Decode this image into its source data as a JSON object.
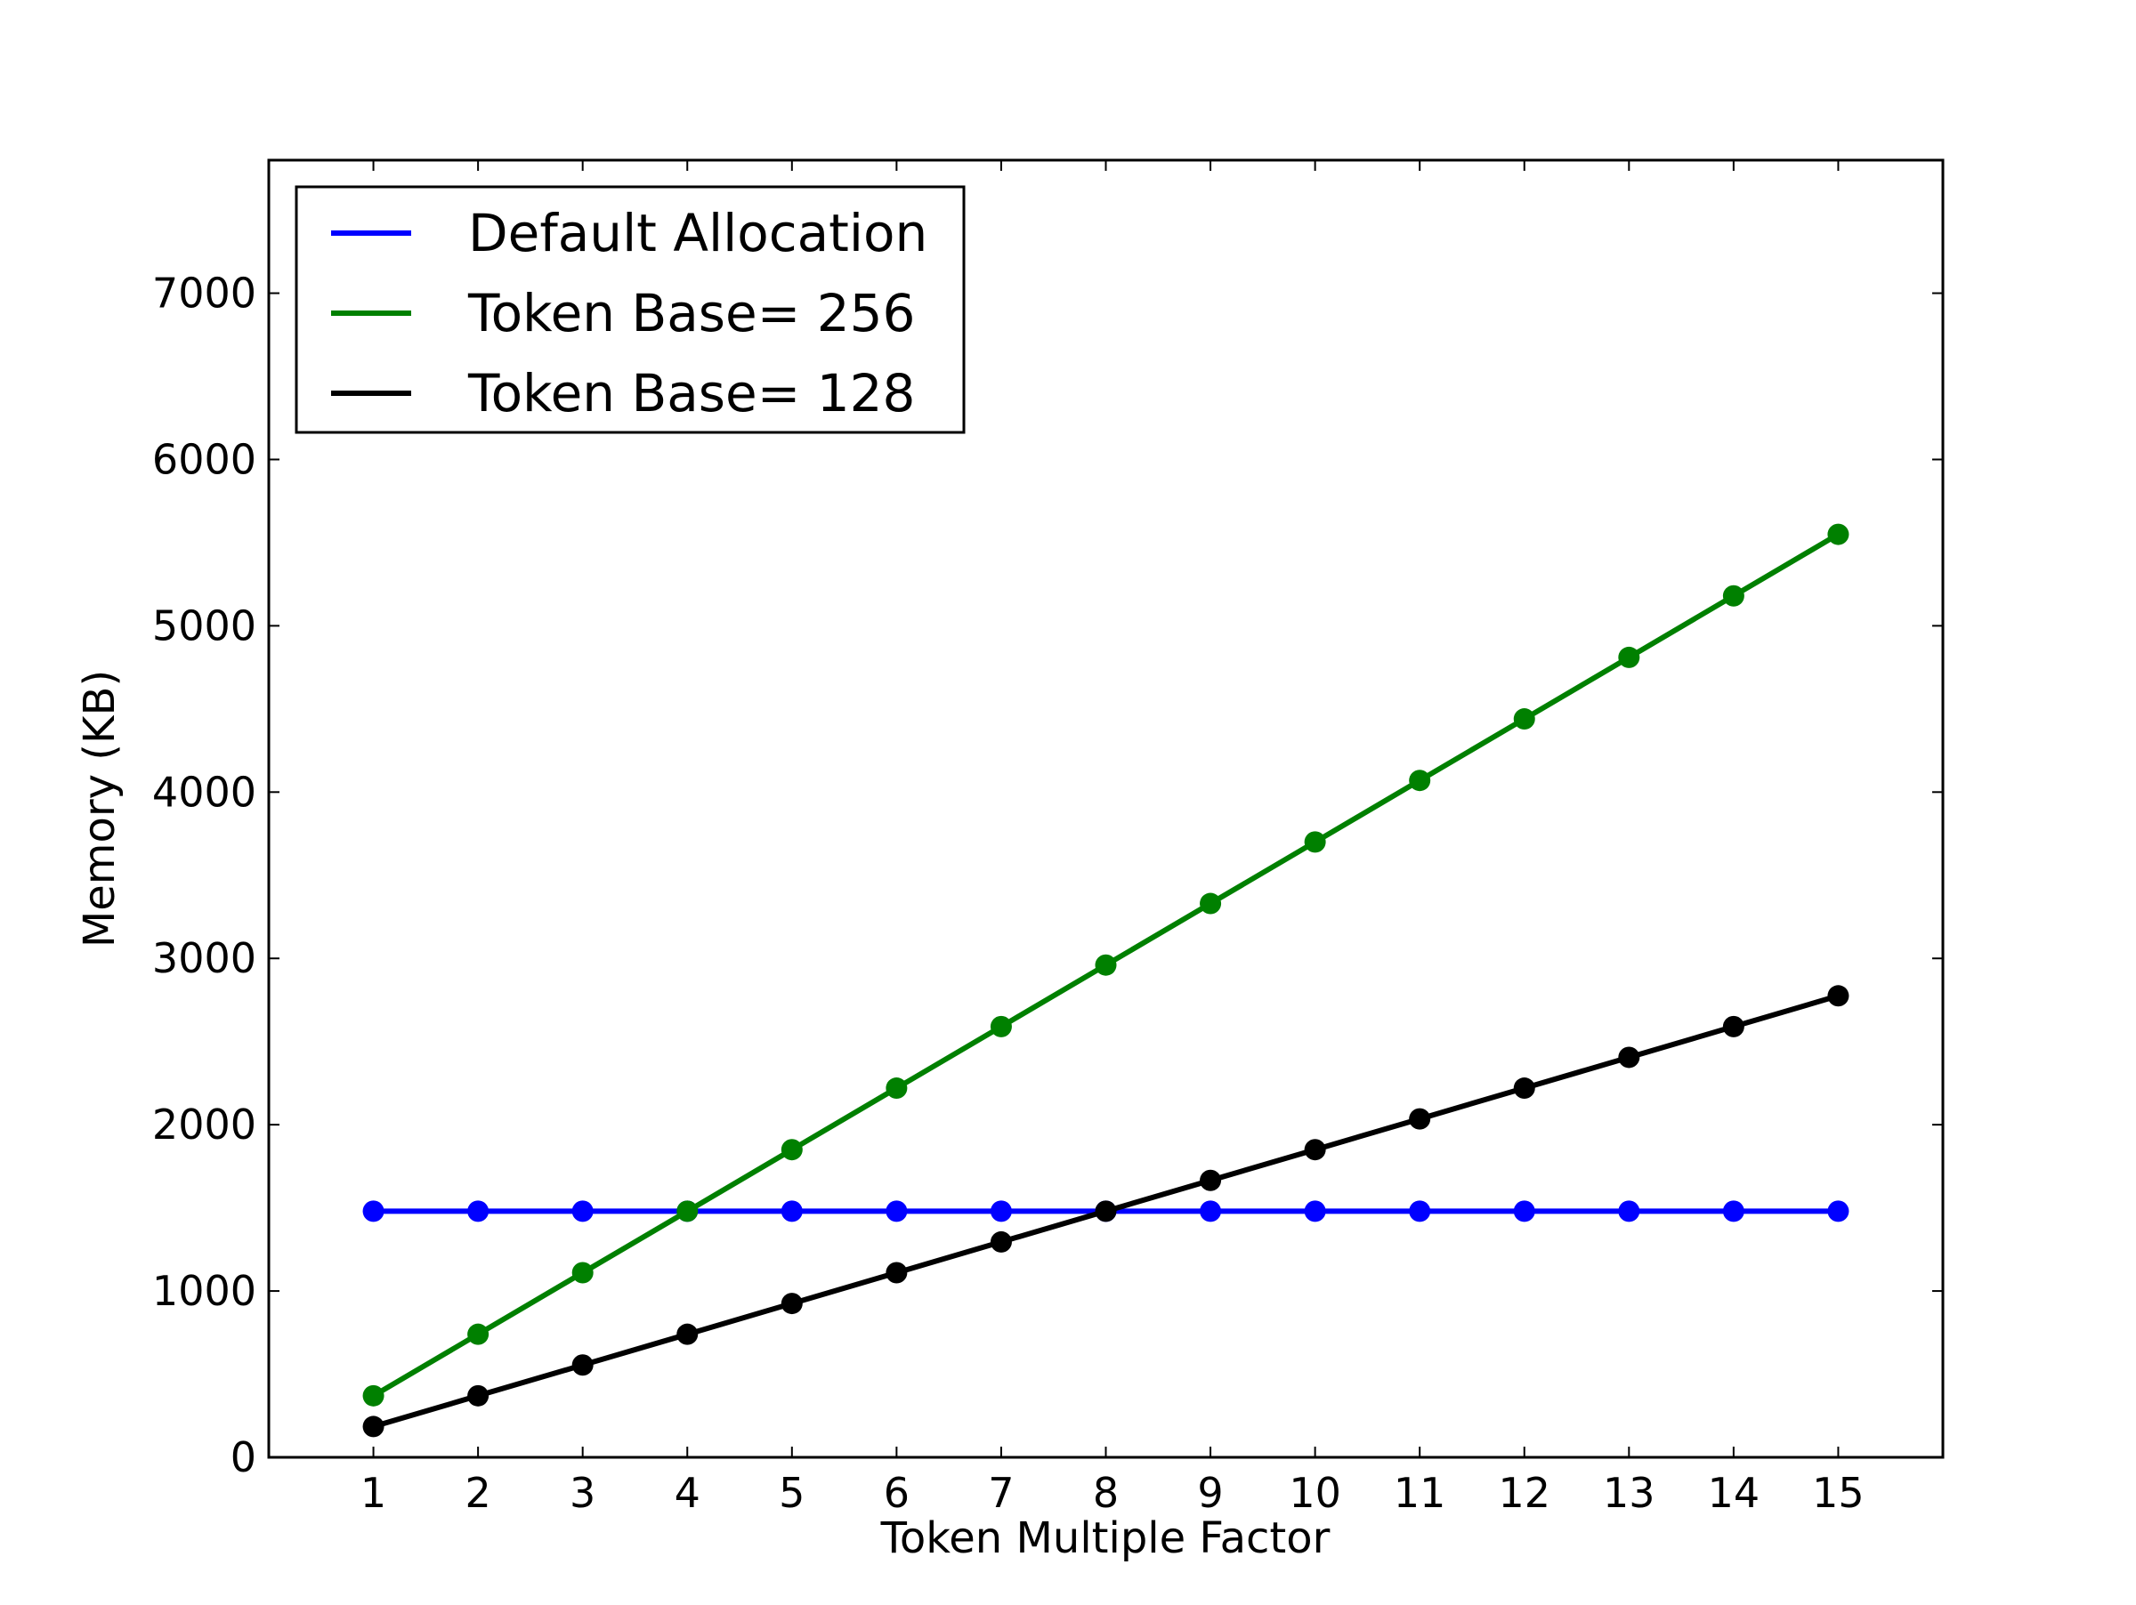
{
  "chart_data": {
    "type": "line",
    "title": "",
    "xlabel": "Token Multiple Factor",
    "ylabel": "Memory (KB)",
    "x": [
      1,
      2,
      3,
      4,
      5,
      6,
      7,
      8,
      9,
      10,
      11,
      12,
      13,
      14,
      15
    ],
    "x_ticks": [
      "1",
      "2",
      "3",
      "4",
      "5",
      "6",
      "7",
      "8",
      "9",
      "10",
      "11",
      "12",
      "13",
      "14",
      "15"
    ],
    "xlim": [
      0,
      16
    ],
    "y_ticks": [
      "0",
      "1000",
      "2000",
      "3000",
      "4000",
      "5000",
      "6000",
      "7000"
    ],
    "ylim": [
      0,
      7800
    ],
    "grid": false,
    "legend_position": "upper-left",
    "series": [
      {
        "name": "Default Allocation",
        "color": "#0000ff",
        "values": [
          1480,
          1480,
          1480,
          1480,
          1480,
          1480,
          1480,
          1480,
          1480,
          1480,
          1480,
          1480,
          1480,
          1480,
          1480
        ]
      },
      {
        "name": "Token Base= 256",
        "color": "#008000",
        "values": [
          370,
          740,
          1110,
          1480,
          1850,
          2220,
          2590,
          2960,
          3330,
          3700,
          4070,
          4440,
          4810,
          5180,
          5550
        ]
      },
      {
        "name": "Token Base= 128",
        "color": "#000000",
        "values": [
          185,
          370,
          555,
          740,
          925,
          1110,
          1295,
          1480,
          1665,
          1850,
          2035,
          2220,
          2405,
          2590,
          2775
        ]
      }
    ]
  }
}
